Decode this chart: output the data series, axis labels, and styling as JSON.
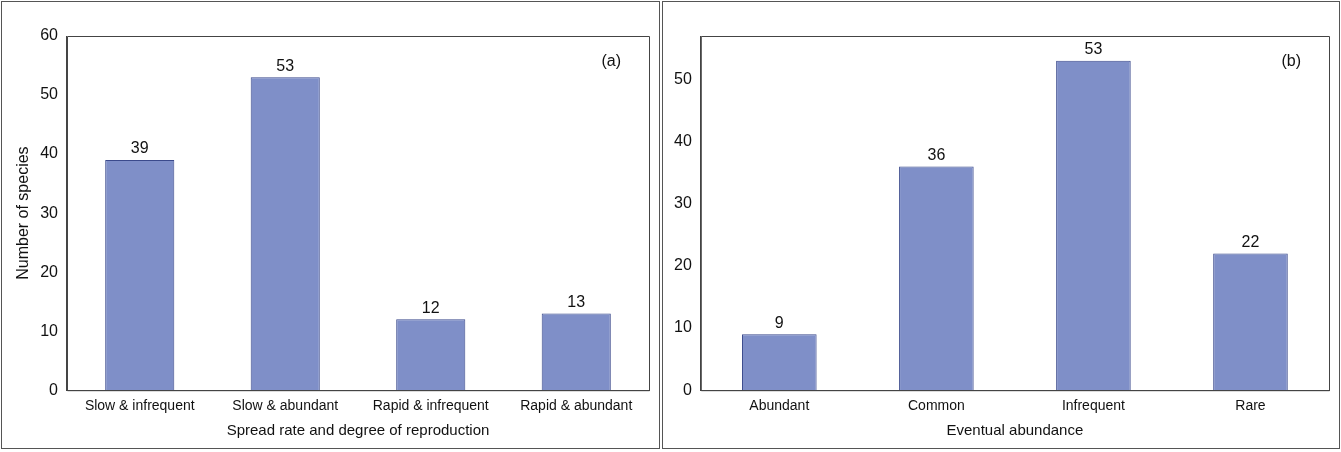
{
  "chart_data": [
    {
      "type": "bar",
      "xlabel": "Spread rate and degree of reproduction",
      "ylabel": "Number of species",
      "categories": [
        "Slow & infrequent",
        "Slow & abundant",
        "Rapid & infrequent",
        "Rapid & abundant"
      ],
      "values": [
        39,
        53,
        12,
        13
      ],
      "color": "#7f8fc8",
      "ylim": [
        0,
        60
      ],
      "yticks": [
        0,
        10,
        20,
        30,
        40,
        50,
        60
      ],
      "data_labels": true,
      "grid": false,
      "legend": false,
      "annotations": [
        "(a)"
      ]
    },
    {
      "type": "bar",
      "xlabel": "Eventual abundance",
      "categories": [
        "Abundant",
        "Common",
        "Infrequent",
        "Rare"
      ],
      "values": [
        9,
        36,
        53,
        22
      ],
      "color": "#7f8fc8",
      "ylim": [
        0,
        57
      ],
      "yticks": [
        0,
        10,
        20,
        30,
        40,
        50
      ],
      "data_labels": true,
      "grid": false,
      "legend": false,
      "annotations": [
        "(b)"
      ]
    }
  ]
}
